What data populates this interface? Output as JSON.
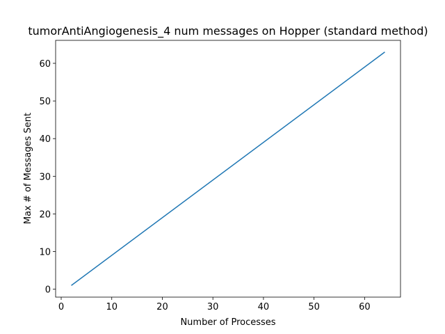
{
  "chart_data": {
    "type": "line",
    "title": "tumorAntiAngiogenesis_4 num messages on Hopper (standard method)",
    "xlabel": "Number of Processes",
    "ylabel": "Max # of Messages Sent",
    "xlim": [
      -1.1,
      67.1
    ],
    "ylim": [
      -2.1,
      66.1
    ],
    "xticks": [
      0,
      10,
      20,
      30,
      40,
      50,
      60
    ],
    "yticks": [
      0,
      10,
      20,
      30,
      40,
      50,
      60
    ],
    "grid": false,
    "series": [
      {
        "color": "#1f77b4",
        "x": [
          2,
          64
        ],
        "y": [
          1,
          63
        ]
      }
    ]
  }
}
